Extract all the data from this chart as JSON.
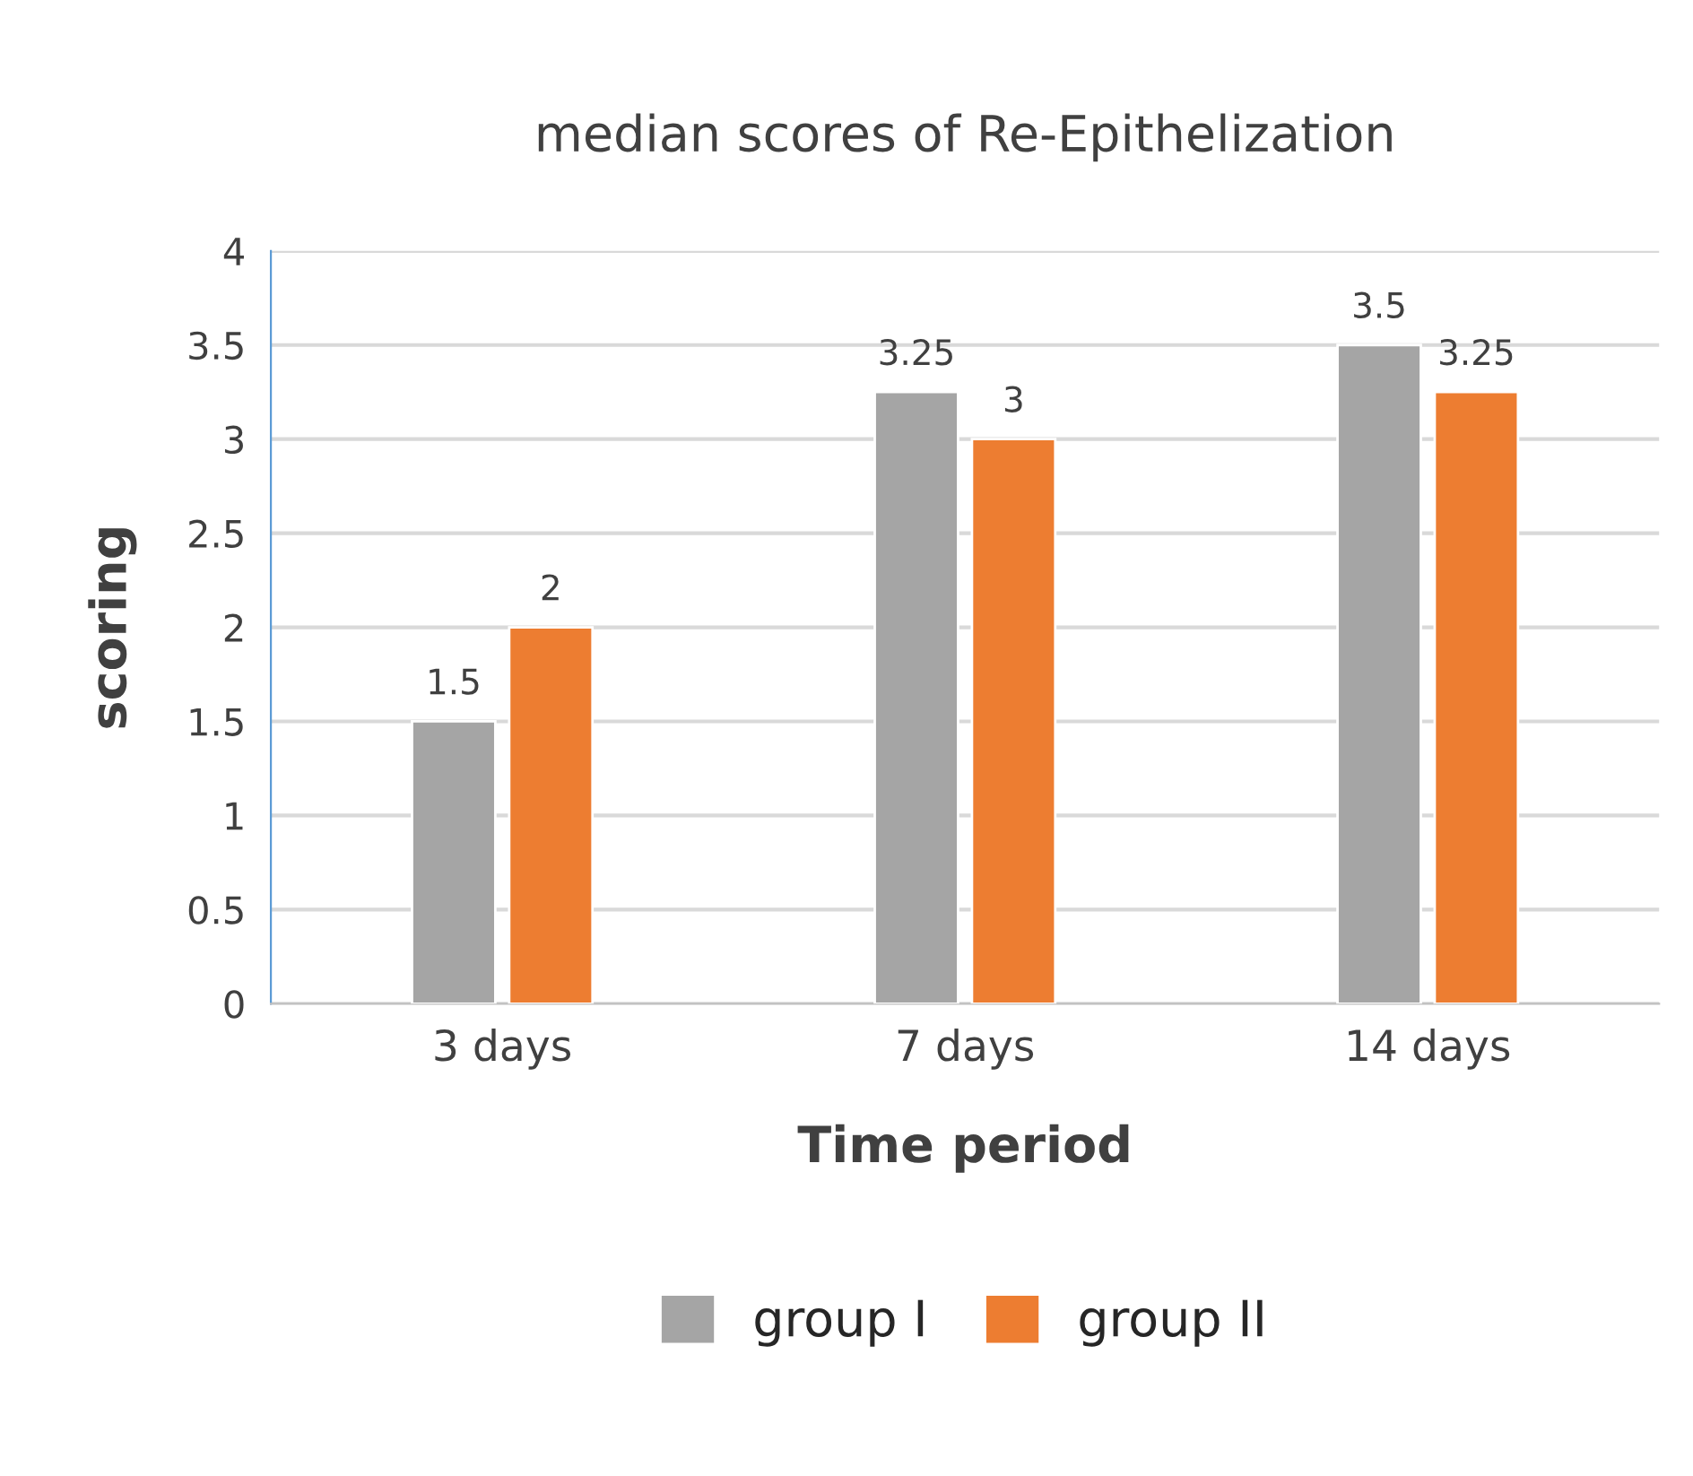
{
  "chart_data": {
    "type": "bar",
    "title": "median scores of Re-Epithelization",
    "xlabel": "Time period",
    "ylabel": "scoring",
    "categories": [
      "3 days",
      "7 days",
      "14 days"
    ],
    "series": [
      {
        "name": "group I",
        "color": "#a5a5a5",
        "values": [
          1.5,
          3.25,
          3.5
        ]
      },
      {
        "name": "group II",
        "color": "#ed7d31",
        "values": [
          2,
          3,
          3.25
        ]
      }
    ],
    "ylim": [
      0,
      4
    ],
    "yticks": [
      0,
      0.5,
      1,
      1.5,
      2,
      2.5,
      3,
      3.5,
      4
    ],
    "grid": "y",
    "legend": "bottom",
    "data_labels": true
  }
}
